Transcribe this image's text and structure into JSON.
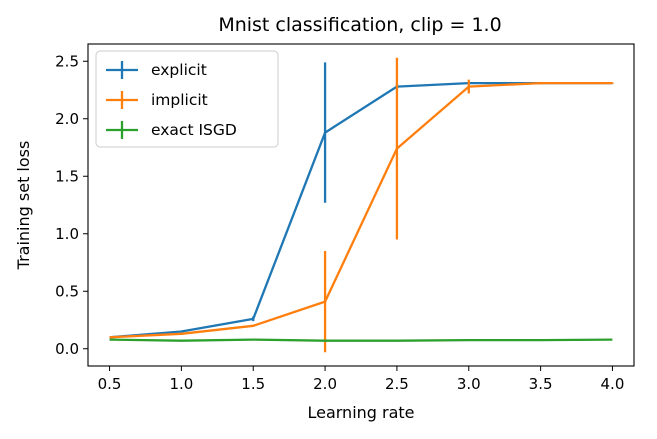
{
  "chart_data": {
    "type": "line",
    "title": "Mnist classification, clip = 1.0",
    "xlabel": "Learning rate",
    "ylabel": "Training set loss",
    "xlim": [
      0.35,
      4.15
    ],
    "ylim": [
      -0.15,
      2.65
    ],
    "x": [
      0.5,
      1.0,
      1.5,
      2.0,
      2.5,
      3.0,
      3.5,
      4.0
    ],
    "xticks": [
      "0.5",
      "1.0",
      "1.5",
      "2.0",
      "2.5",
      "3.0",
      "3.5",
      "4.0"
    ],
    "yticks": [
      "0.0",
      "0.5",
      "1.0",
      "1.5",
      "2.0",
      "2.5"
    ],
    "xtick_values": [
      0.5,
      1.0,
      1.5,
      2.0,
      2.5,
      3.0,
      3.5,
      4.0
    ],
    "ytick_values": [
      0.0,
      0.5,
      1.0,
      1.5,
      2.0,
      2.5
    ],
    "grid": false,
    "legend_position": "top-left",
    "series": [
      {
        "name": "explicit",
        "color": "#1f77b4",
        "values": [
          0.1,
          0.15,
          0.26,
          1.88,
          2.28,
          2.31,
          2.31,
          2.31
        ],
        "errors": [
          0.0,
          0.005,
          0.02,
          0.61,
          0.02,
          0.01,
          0.005,
          0.005
        ]
      },
      {
        "name": "implicit",
        "color": "#ff7f0e",
        "values": [
          0.1,
          0.13,
          0.2,
          0.41,
          1.74,
          2.28,
          2.31,
          2.31
        ],
        "errors": [
          0.0,
          0.005,
          0.01,
          0.44,
          0.79,
          0.06,
          0.01,
          0.005
        ]
      },
      {
        "name": "exact ISGD",
        "color": "#2ca02c",
        "values": [
          0.08,
          0.07,
          0.08,
          0.07,
          0.07,
          0.075,
          0.075,
          0.08
        ],
        "errors": [
          0.0,
          0.0,
          0.0,
          0.0,
          0.0,
          0.0,
          0.0,
          0.0
        ]
      }
    ]
  }
}
